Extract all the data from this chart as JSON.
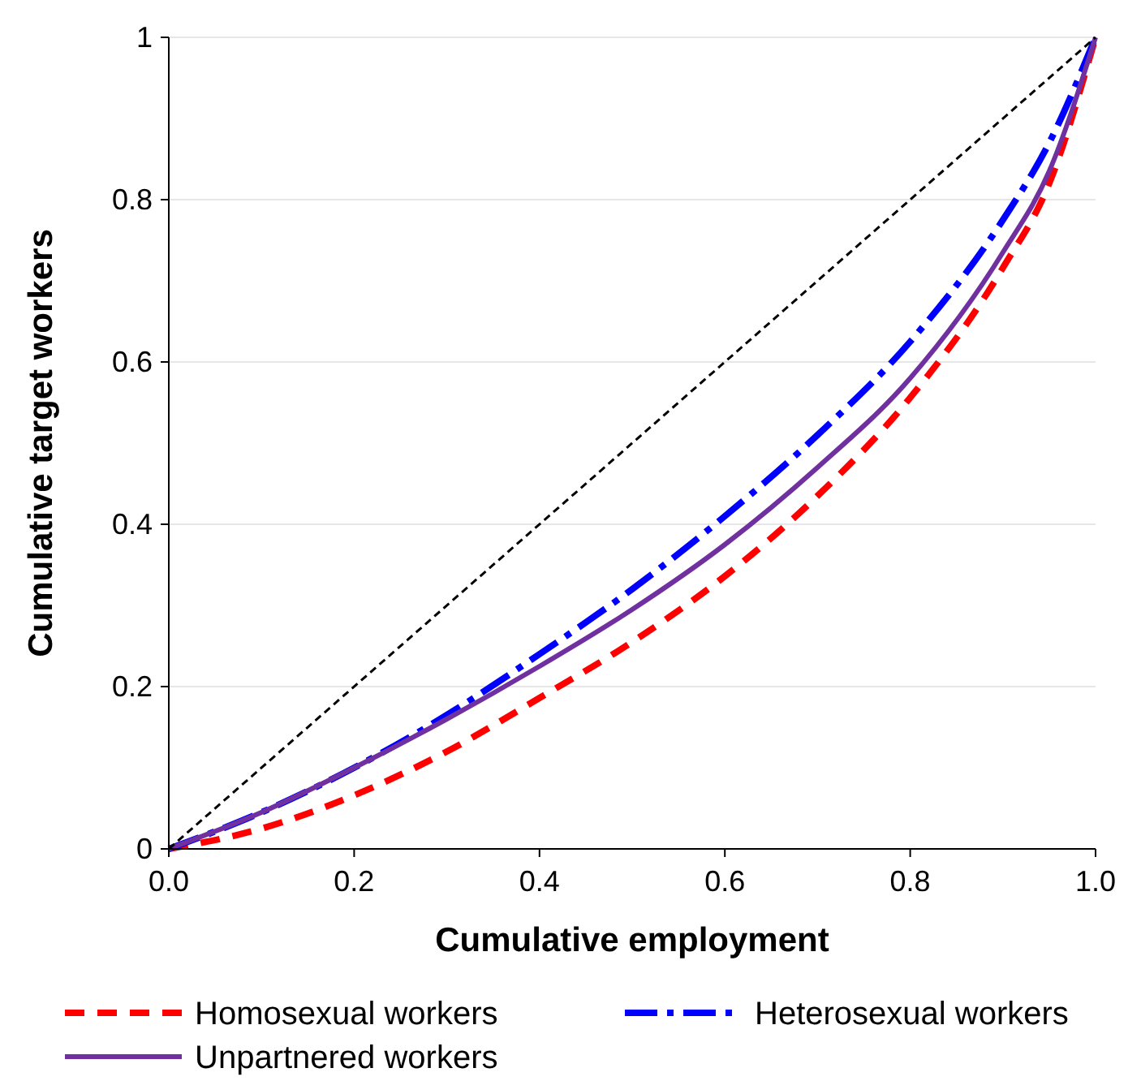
{
  "chart_data": {
    "type": "line",
    "xlabel": "Cumulative employment",
    "ylabel": "Cumulative target workers",
    "xlim": [
      0,
      1
    ],
    "ylim": [
      0,
      1
    ],
    "xticks": [
      {
        "value": 0,
        "label": "0.0"
      },
      {
        "value": 0.2,
        "label": "0.2"
      },
      {
        "value": 0.4,
        "label": "0.4"
      },
      {
        "value": 0.6,
        "label": "0.6"
      },
      {
        "value": 0.8,
        "label": "0.8"
      },
      {
        "value": 1,
        "label": "1.0"
      }
    ],
    "yticks": [
      0,
      0.2,
      0.4,
      0.6,
      0.8,
      1
    ],
    "grid": "y",
    "legend": "bottom",
    "x": [
      0,
      0.1,
      0.2,
      0.3,
      0.4,
      0.5,
      0.6,
      0.7,
      0.8,
      0.9,
      0.95,
      1
    ],
    "series": [
      {
        "name": "Homosexual workers",
        "color": "#ff0000",
        "line_style": "dashed",
        "values": [
          0,
          0.025,
          0.066,
          0.12,
          0.186,
          0.255,
          0.336,
          0.435,
          0.556,
          0.716,
          0.82,
          1
        ]
      },
      {
        "name": "Heterosexual workers",
        "color": "#0000ff",
        "line_style": "dashdot",
        "values": [
          0,
          0.045,
          0.1,
          0.165,
          0.24,
          0.32,
          0.41,
          0.51,
          0.625,
          0.775,
          0.87,
          1
        ]
      },
      {
        "name": "Unpartnered workers",
        "color": "#7030a0",
        "line_style": "solid",
        "values": [
          0,
          0.045,
          0.1,
          0.16,
          0.225,
          0.295,
          0.375,
          0.47,
          0.58,
          0.735,
          0.835,
          1
        ]
      },
      {
        "color": "#000000",
        "line_style": "dashed",
        "x": [
          0,
          1
        ],
        "values": [
          0,
          1
        ]
      }
    ]
  }
}
